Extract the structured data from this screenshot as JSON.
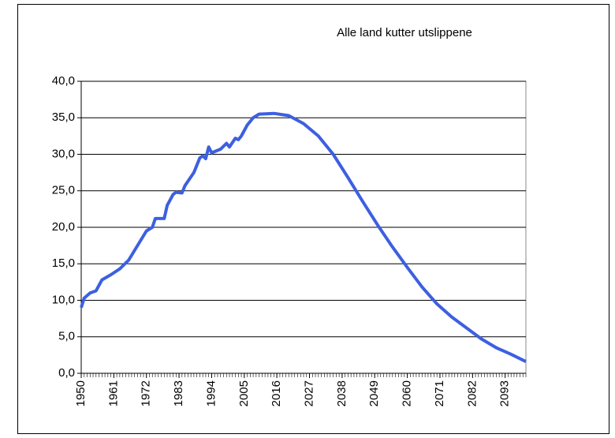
{
  "chart_data": {
    "type": "line",
    "title": "Alle land kutter utslippene",
    "x": [
      1950,
      1951,
      1953,
      1955,
      1957,
      1960,
      1963,
      1966,
      1969,
      1972,
      1974,
      1975,
      1978,
      1979,
      1981,
      1982,
      1984,
      1985,
      1988,
      1990,
      1991,
      1992,
      1993,
      1994,
      1997,
      1999,
      2000,
      2002,
      2003,
      2004,
      2006,
      2008,
      2010,
      2015,
      2020,
      2025,
      2030,
      2035,
      2040,
      2045,
      2050,
      2055,
      2060,
      2065,
      2070,
      2075,
      2080,
      2085,
      2090,
      2095,
      2100
    ],
    "series": [
      {
        "name": null,
        "color": "#3d5fe0",
        "values": [
          9.0,
          10.3,
          11.0,
          11.3,
          12.8,
          13.5,
          14.3,
          15.5,
          17.5,
          19.5,
          20.0,
          21.2,
          21.2,
          23.0,
          24.5,
          24.8,
          24.7,
          25.7,
          27.5,
          29.5,
          29.8,
          29.4,
          31.0,
          30.2,
          30.7,
          31.5,
          31.0,
          32.2,
          32.0,
          32.5,
          34.0,
          35.0,
          35.5,
          35.6,
          35.3,
          34.2,
          32.5,
          30.0,
          26.8,
          23.5,
          20.3,
          17.3,
          14.5,
          11.8,
          9.5,
          7.7,
          6.2,
          4.7,
          3.5,
          2.6,
          1.6
        ]
      }
    ],
    "xlim": [
      1950,
      2100
    ],
    "xticks": [
      1950,
      1961,
      1972,
      1983,
      1994,
      2005,
      2016,
      2027,
      2038,
      2049,
      2060,
      2071,
      2082,
      2093
    ],
    "ylim": [
      0,
      40
    ],
    "yticks": [
      {
        "value": 0,
        "label": "0,0"
      },
      {
        "value": 5,
        "label": "5,0"
      },
      {
        "value": 10,
        "label": "10,0"
      },
      {
        "value": 15,
        "label": "15,0"
      },
      {
        "value": 20,
        "label": "20,0"
      },
      {
        "value": 25,
        "label": "25,0"
      },
      {
        "value": 30,
        "label": "30,0"
      },
      {
        "value": 35,
        "label": "35,0"
      },
      {
        "value": 40,
        "label": "40,0"
      }
    ],
    "grid": true
  }
}
